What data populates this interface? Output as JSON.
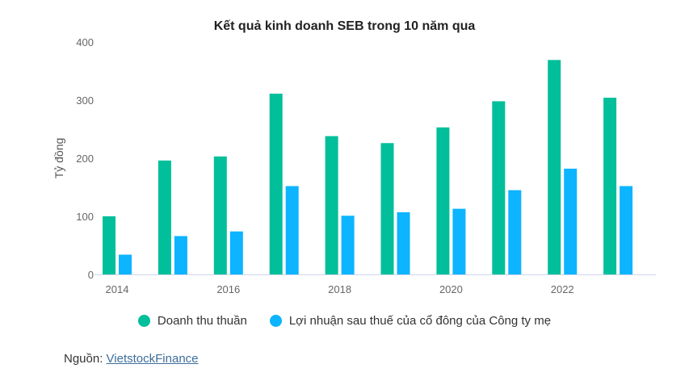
{
  "chart_data": {
    "type": "bar",
    "title": "Kết quả kinh doanh SEB trong 10 năm qua",
    "ylabel": "Tỷ đồng",
    "xlabel": "",
    "ylim": [
      0,
      400
    ],
    "yticks": [
      0,
      100,
      200,
      300,
      400
    ],
    "categories": [
      "2014",
      "2015",
      "2016",
      "2017",
      "2018",
      "2019",
      "2020",
      "2021",
      "2022",
      "2023"
    ],
    "xtick_labels": [
      "2014",
      "2016",
      "2018",
      "2020",
      "2022"
    ],
    "legend_position": "bottom",
    "grid": false,
    "series": [
      {
        "name": "Doanh thu thuần",
        "color": "#00bf9a",
        "values": [
          100,
          196,
          203,
          311,
          238,
          226,
          253,
          298,
          369,
          304
        ]
      },
      {
        "name": "Lợi nhuận sau thuế của cổ đông của Công ty mẹ",
        "color": "#0db4ff",
        "values": [
          34,
          66,
          74,
          152,
          101,
          107,
          113,
          145,
          182,
          152
        ]
      }
    ]
  },
  "source": {
    "label": "Nguồn:",
    "link": "VietstockFinance"
  }
}
